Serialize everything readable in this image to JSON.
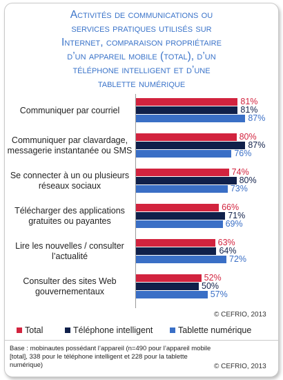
{
  "title_lines": [
    "Activités de communications ou",
    "services pratiques utilisés sur",
    "Internet, comparaison propriétaire",
    "d’un appareil mobile (total), d’un",
    "téléphone intelligent et d’une",
    "tablette numérique"
  ],
  "chart_data": {
    "type": "bar",
    "orientation": "horizontal",
    "categories": [
      "Communiquer par courriel",
      "Communiquer par clavardage, messagerie instantanée ou SMS",
      "Se connecter à un ou plusieurs réseaux sociaux",
      "Télécharger des applications gratuites ou payantes",
      "Lire les nouvelles / consulter l’actualité",
      "Consulter des sites Web gouvernementaux"
    ],
    "category_lines": [
      [
        "Communiquer par courriel"
      ],
      [
        "Communiquer par clavardage,",
        "messagerie instantanée ou SMS"
      ],
      [
        "Se connecter à un ou plusieurs",
        "réseaux sociaux"
      ],
      [
        "Télécharger des applications",
        "gratuites ou payantes"
      ],
      [
        "Lire les nouvelles / consulter",
        "l’actualité"
      ],
      [
        "Consulter des sites Web",
        "gouvernementaux"
      ]
    ],
    "series": [
      {
        "name": "Total",
        "color": "#d2233e",
        "values": [
          81,
          80,
          74,
          66,
          63,
          52
        ]
      },
      {
        "name": "Téléphone intelligent",
        "color": "#10204a",
        "values": [
          81,
          87,
          80,
          71,
          64,
          50
        ]
      },
      {
        "name": "Tablette numérique",
        "color": "#3a6fc6",
        "values": [
          87,
          76,
          73,
          69,
          72,
          57
        ]
      }
    ],
    "value_labels": [
      [
        "81%",
        "80%",
        "74%",
        "66%",
        "63%",
        "52%"
      ],
      [
        "81%",
        "87%",
        "80%",
        "71%",
        "64%",
        "50%"
      ],
      [
        "87%",
        "76%",
        "73%",
        "69%",
        "72%",
        "57%"
      ]
    ],
    "xlim": [
      0,
      100
    ],
    "legend_position": "bottom",
    "grid": false
  },
  "copyright_chart": "© CEFRIO, 2013",
  "note": "Base : mobinautes possédant l’appareil (n=490 pour l’appareil mobile [total], 338 pour le téléphone intelligent et 228 pour la tablette numérique)",
  "copyright_note": "© CEFRIO, 2013"
}
